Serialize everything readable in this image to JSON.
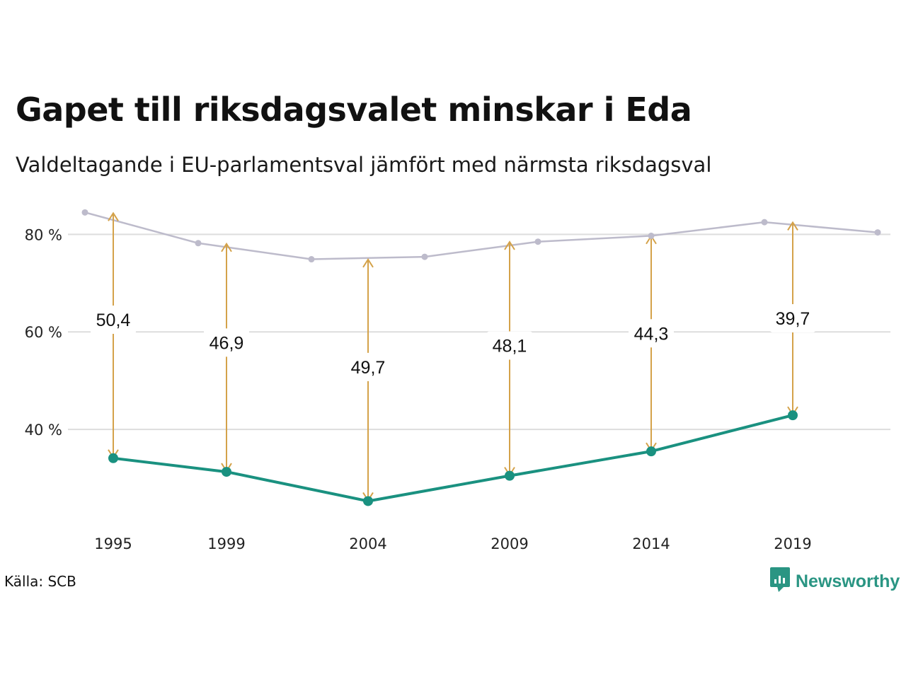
{
  "header": {
    "title": "Gapet till riksdagsvalet minskar i Eda",
    "subtitle": "Valdeltagande i EU-parlamentsval jämfört med närmsta riksdagsval"
  },
  "footer": {
    "source": "Källa: SCB",
    "brand": "Newsworthy",
    "brand_icon": "newsworthy-logo-icon"
  },
  "colors": {
    "riksdag": "#bdbbcb",
    "eu": "#1a9180",
    "gap": "#d4a24a",
    "grid": "#dddddd"
  },
  "chart_data": {
    "type": "line",
    "title": "Gapet till riksdagsvalet minskar i Eda",
    "subtitle": "Valdeltagande i EU-parlamentsval jämfört med närmsta riksdagsval",
    "xlabel": "",
    "ylabel": "",
    "x_ticks": [
      "1995",
      "1999",
      "2004",
      "2009",
      "2014",
      "2019"
    ],
    "y_ticks": [
      "40 %",
      "60 %",
      "80 %"
    ],
    "y_tick_values": [
      40,
      60,
      80
    ],
    "xlim": [
      1993.9,
      2022.1
    ],
    "ylim": [
      20,
      86
    ],
    "grid": true,
    "series": [
      {
        "key": "riksdag",
        "x": [
          1994,
          1998,
          2002,
          2006,
          2010,
          2014,
          2018,
          2022
        ],
        "values": [
          84.5,
          78.2,
          74.9,
          75.4,
          78.5,
          79.7,
          82.5,
          80.4
        ]
      },
      {
        "key": "eu",
        "x": [
          1995,
          1999,
          2004,
          2009,
          2014,
          2019
        ],
        "values": [
          34.1,
          31.3,
          25.3,
          30.5,
          35.5,
          42.9
        ]
      }
    ],
    "gaps": [
      {
        "x": 1995,
        "top": 84.5,
        "bottom": 34.1,
        "label": "50,4",
        "label_y": 62.5
      },
      {
        "x": 1999,
        "top": 78.2,
        "bottom": 31.3,
        "label": "46,9",
        "label_y": 57.8
      },
      {
        "x": 2004,
        "top": 75.0,
        "bottom": 25.3,
        "label": "49,7",
        "label_y": 52.8
      },
      {
        "x": 2009,
        "top": 78.6,
        "bottom": 30.5,
        "label": "48,1",
        "label_y": 57.2
      },
      {
        "x": 2014,
        "top": 79.8,
        "bottom": 35.5,
        "label": "44,3",
        "label_y": 59.7
      },
      {
        "x": 2019,
        "top": 82.6,
        "bottom": 42.9,
        "label": "39,7",
        "label_y": 62.8
      }
    ]
  }
}
